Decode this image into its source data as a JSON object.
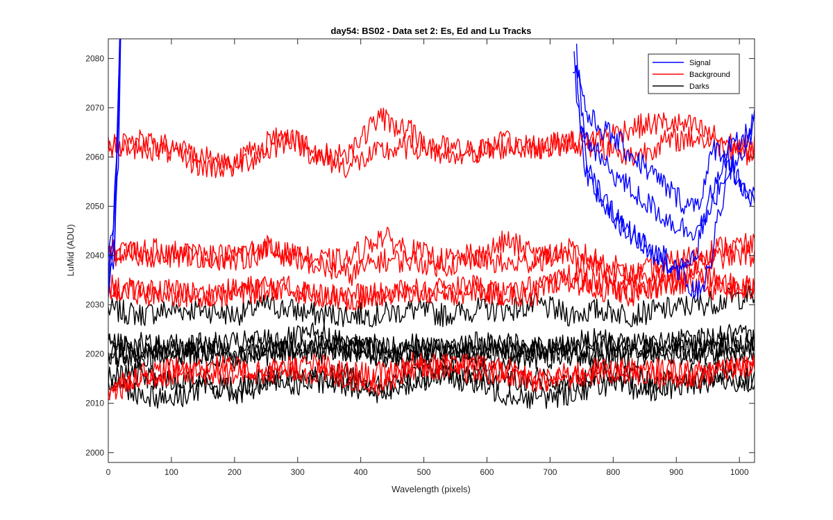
{
  "chart_data": {
    "type": "line",
    "title": "day54: BS02 - Data set 2: Es, Ed and Lu Tracks",
    "xlabel": "Wavelength (pixels)",
    "ylabel": "LuMid (ADU)",
    "xlim": [
      0,
      1024
    ],
    "ylim": [
      1998,
      2084
    ],
    "xticks": [
      0,
      100,
      200,
      300,
      400,
      500,
      600,
      700,
      800,
      900,
      1000
    ],
    "yticks": [
      2000,
      2010,
      2020,
      2030,
      2040,
      2050,
      2060,
      2070,
      2080
    ],
    "grid": false,
    "legend_position": "top-right",
    "legend": [
      {
        "label": "Signal",
        "color": "#0000ff"
      },
      {
        "label": "Background",
        "color": "#ff0000"
      },
      {
        "label": "Darks",
        "color": "#000000"
      }
    ],
    "series": [
      {
        "group": "Signal",
        "color": "#0000ff",
        "x": [
          0,
          10,
          15,
          18,
          20,
          740,
          760,
          800,
          850,
          900,
          920,
          940,
          960,
          980,
          1000,
          1024
        ],
        "y": [
          2034,
          2045,
          2065,
          2080,
          2095,
          2080,
          2068,
          2064,
          2058,
          2052,
          2050,
          2052,
          2062,
          2060,
          2055,
          2050
        ]
      },
      {
        "group": "Signal",
        "color": "#0000ff",
        "x": [
          0,
          8,
          14,
          17,
          19,
          735,
          750,
          790,
          840,
          890,
          920,
          950,
          970,
          990,
          1010,
          1024
        ],
        "y": [
          2038,
          2046,
          2062,
          2078,
          2092,
          2080,
          2065,
          2058,
          2052,
          2047,
          2045,
          2047,
          2055,
          2058,
          2052,
          2052
        ]
      },
      {
        "group": "Signal",
        "color": "#0000ff",
        "x": [
          0,
          9,
          16,
          19,
          21,
          738,
          755,
          790,
          830,
          870,
          910,
          930,
          960,
          985,
          1005,
          1024
        ],
        "y": [
          2032,
          2040,
          2060,
          2080,
          2096,
          2082,
          2058,
          2050,
          2044,
          2040,
          2037,
          2040,
          2055,
          2062,
          2063,
          2068
        ]
      },
      {
        "group": "Signal",
        "color": "#0000ff",
        "x": [
          0,
          7,
          13,
          17,
          20,
          742,
          760,
          800,
          840,
          880,
          910,
          930,
          950,
          970,
          990,
          1010,
          1024
        ],
        "y": [
          2036,
          2042,
          2058,
          2076,
          2094,
          2081,
          2055,
          2048,
          2043,
          2040,
          2036,
          2032,
          2036,
          2050,
          2058,
          2062,
          2067
        ]
      },
      {
        "group": "Background",
        "color": "#ff0000",
        "x": [
          0,
          50,
          100,
          150,
          200,
          250,
          290,
          330,
          380,
          430,
          480,
          530,
          580,
          630,
          680,
          730,
          780,
          830,
          880,
          930,
          980,
          1024
        ],
        "y": [
          2062,
          2063,
          2062,
          2060,
          2059,
          2063,
          2065,
          2060,
          2061,
          2068,
          2065,
          2060,
          2061,
          2063,
          2062,
          2063,
          2062,
          2060,
          2063,
          2064,
          2062,
          2062
        ]
      },
      {
        "group": "Background",
        "color": "#ff0000",
        "x": [
          0,
          50,
          100,
          150,
          200,
          250,
          290,
          330,
          380,
          430,
          480,
          530,
          580,
          630,
          680,
          730,
          780,
          830,
          880,
          930,
          980,
          1024
        ],
        "y": [
          2062,
          2062,
          2061,
          2058,
          2058,
          2061,
          2064,
          2060,
          2058,
          2061,
          2062,
          2062,
          2061,
          2062,
          2062,
          2063,
          2064,
          2066,
          2067,
          2066,
          2063,
          2060
        ]
      },
      {
        "group": "Background",
        "color": "#ff0000",
        "x": [
          0,
          50,
          100,
          150,
          200,
          250,
          290,
          330,
          380,
          430,
          480,
          530,
          580,
          630,
          680,
          730,
          780,
          830,
          880,
          930,
          980,
          1024
        ],
        "y": [
          2040,
          2041,
          2041,
          2040,
          2039,
          2041,
          2040,
          2039,
          2039,
          2044,
          2041,
          2039,
          2040,
          2038,
          2039,
          2041,
          2039,
          2036,
          2036,
          2038,
          2040,
          2040
        ]
      },
      {
        "group": "Background",
        "color": "#ff0000",
        "x": [
          0,
          50,
          100,
          150,
          200,
          250,
          290,
          330,
          380,
          430,
          480,
          530,
          580,
          630,
          680,
          730,
          780,
          830,
          880,
          930,
          980,
          1024
        ],
        "y": [
          2041,
          2040,
          2040,
          2040,
          2040,
          2042,
          2040,
          2038,
          2036,
          2039,
          2039,
          2038,
          2039,
          2043,
          2040,
          2040,
          2037,
          2036,
          2038,
          2040,
          2042,
          2042
        ]
      },
      {
        "group": "Background",
        "color": "#ff0000",
        "x": [
          0,
          50,
          100,
          150,
          200,
          250,
          290,
          330,
          380,
          430,
          480,
          530,
          580,
          630,
          680,
          730,
          780,
          830,
          880,
          930,
          980,
          1024
        ],
        "y": [
          2034,
          2032,
          2033,
          2032,
          2033,
          2034,
          2033,
          2032,
          2032,
          2032,
          2033,
          2032,
          2033,
          2032,
          2034,
          2035,
          2033,
          2033,
          2034,
          2034,
          2033,
          2033
        ]
      },
      {
        "group": "Background",
        "color": "#ff0000",
        "x": [
          0,
          50,
          100,
          150,
          200,
          250,
          290,
          330,
          380,
          430,
          480,
          530,
          580,
          630,
          680,
          730,
          780,
          830,
          880,
          930,
          980,
          1024
        ],
        "y": [
          2033,
          2033,
          2032,
          2032,
          2032,
          2033,
          2034,
          2032,
          2031,
          2032,
          2032,
          2033,
          2034,
          2032,
          2032,
          2036,
          2034,
          2032,
          2034,
          2037,
          2034,
          2034
        ]
      },
      {
        "group": "Background",
        "color": "#ff0000",
        "x": [
          0,
          50,
          100,
          150,
          200,
          250,
          290,
          330,
          380,
          430,
          480,
          530,
          580,
          630,
          680,
          730,
          780,
          830,
          880,
          930,
          980,
          1024
        ],
        "y": [
          2013,
          2016,
          2017,
          2016,
          2016,
          2017,
          2017,
          2016,
          2015,
          2014,
          2017,
          2018,
          2016,
          2016,
          2015,
          2015,
          2016,
          2017,
          2015,
          2015,
          2017,
          2017
        ]
      },
      {
        "group": "Background",
        "color": "#ff0000",
        "x": [
          0,
          50,
          100,
          150,
          200,
          250,
          290,
          330,
          380,
          430,
          480,
          530,
          580,
          630,
          680,
          730,
          780,
          830,
          880,
          930,
          980,
          1024
        ],
        "y": [
          2012,
          2015,
          2016,
          2018,
          2017,
          2016,
          2017,
          2018,
          2016,
          2016,
          2018,
          2017,
          2018,
          2017,
          2014,
          2016,
          2017,
          2016,
          2017,
          2016,
          2018,
          2018
        ]
      },
      {
        "group": "Darks",
        "color": "#000000",
        "x": [
          0,
          50,
          100,
          150,
          200,
          250,
          290,
          330,
          380,
          430,
          480,
          530,
          580,
          630,
          680,
          730,
          780,
          830,
          880,
          930,
          980,
          1024
        ],
        "y": [
          2029,
          2028,
          2029,
          2029,
          2028,
          2030,
          2029,
          2028,
          2028,
          2028,
          2029,
          2028,
          2029,
          2029,
          2030,
          2028,
          2029,
          2028,
          2029,
          2030,
          2031,
          2032
        ]
      },
      {
        "group": "Darks",
        "color": "#000000",
        "x": [
          0,
          50,
          100,
          150,
          200,
          250,
          290,
          330,
          380,
          430,
          480,
          530,
          580,
          630,
          680,
          730,
          780,
          830,
          880,
          930,
          980,
          1024
        ],
        "y": [
          2022,
          2021,
          2022,
          2021,
          2021,
          2022,
          2021,
          2022,
          2021,
          2022,
          2021,
          2021,
          2022,
          2021,
          2021,
          2021,
          2022,
          2021,
          2022,
          2021,
          2022,
          2022
        ]
      },
      {
        "group": "Darks",
        "color": "#000000",
        "x": [
          0,
          50,
          100,
          150,
          200,
          250,
          290,
          330,
          380,
          430,
          480,
          530,
          580,
          630,
          680,
          730,
          780,
          830,
          880,
          930,
          980,
          1024
        ],
        "y": [
          2020,
          2020,
          2020,
          2021,
          2020,
          2020,
          2021,
          2020,
          2021,
          2020,
          2020,
          2021,
          2020,
          2020,
          2021,
          2020,
          2020,
          2021,
          2020,
          2021,
          2020,
          2021
        ]
      },
      {
        "group": "Darks",
        "color": "#000000",
        "x": [
          0,
          50,
          100,
          150,
          200,
          250,
          290,
          330,
          380,
          430,
          480,
          530,
          580,
          630,
          680,
          730,
          780,
          830,
          880,
          930,
          980,
          1024
        ],
        "y": [
          2019,
          2019,
          2020,
          2020,
          2019,
          2021,
          2020,
          2022,
          2021,
          2020,
          2019,
          2020,
          2019,
          2019,
          2019,
          2020,
          2019,
          2019,
          2020,
          2020,
          2021,
          2020
        ]
      },
      {
        "group": "Darks",
        "color": "#000000",
        "x": [
          0,
          50,
          100,
          150,
          200,
          250,
          290,
          330,
          380,
          430,
          480,
          530,
          580,
          630,
          680,
          730,
          780,
          830,
          880,
          930,
          980,
          1024
        ],
        "y": [
          2023,
          2022,
          2021,
          2022,
          2022,
          2023,
          2023,
          2024,
          2022,
          2021,
          2022,
          2021,
          2022,
          2022,
          2021,
          2022,
          2023,
          2022,
          2022,
          2023,
          2024,
          2023
        ]
      },
      {
        "group": "Darks",
        "color": "#000000",
        "x": [
          0,
          50,
          100,
          150,
          200,
          250,
          290,
          330,
          380,
          430,
          480,
          530,
          580,
          630,
          680,
          730,
          780,
          830,
          880,
          930,
          980,
          1024
        ],
        "y": [
          2015,
          2012,
          2011,
          2013,
          2012,
          2014,
          2014,
          2014,
          2014,
          2012,
          2014,
          2016,
          2014,
          2012,
          2011,
          2012,
          2014,
          2013,
          2013,
          2014,
          2015,
          2014
        ]
      },
      {
        "group": "Darks",
        "color": "#000000",
        "x": [
          0,
          50,
          100,
          150,
          200,
          250,
          290,
          330,
          380,
          430,
          480,
          530,
          580,
          630,
          680,
          730,
          780,
          830,
          880,
          930,
          980,
          1024
        ],
        "y": [
          2015,
          2016,
          2014,
          2015,
          2013,
          2015,
          2016,
          2015,
          2016,
          2013,
          2015,
          2017,
          2016,
          2015,
          2015,
          2014,
          2016,
          2015,
          2014,
          2016,
          2016,
          2015
        ]
      }
    ]
  }
}
